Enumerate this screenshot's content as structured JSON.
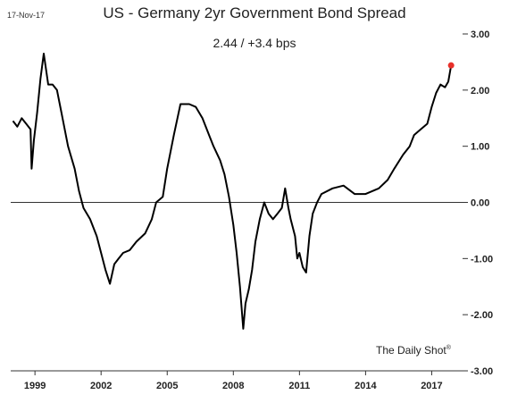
{
  "header": {
    "date": "17-Nov-17",
    "title": "US - Germany 2yr Government Bond Spread",
    "subtitle": "2.44  /  +3.4 bps"
  },
  "watermark": {
    "text": "The Daily Shot",
    "mark": "®"
  },
  "colors": {
    "line": "#000000",
    "marker": "#e8302a",
    "zero_line": "#333333"
  },
  "chart_data": {
    "type": "line",
    "title": "US - Germany 2yr Government Bond Spread",
    "subtitle": "2.44 / +3.4 bps",
    "x_range": [
      1997.9,
      2018.4
    ],
    "y_range": [
      -3.0,
      3.0
    ],
    "y_axis_position": "right",
    "grid": false,
    "zero_line": true,
    "x_ticks": [
      {
        "value": 1999,
        "label": "1999"
      },
      {
        "value": 2002,
        "label": "2002"
      },
      {
        "value": 2005,
        "label": "2005"
      },
      {
        "value": 2008,
        "label": "2008"
      },
      {
        "value": 2011,
        "label": "2011"
      },
      {
        "value": 2014,
        "label": "2014"
      },
      {
        "value": 2017,
        "label": "2017"
      }
    ],
    "y_ticks": [
      {
        "value": 3,
        "label": "3.00"
      },
      {
        "value": 2,
        "label": "2.00"
      },
      {
        "value": 1,
        "label": "1.00"
      },
      {
        "value": 0,
        "label": "0.00"
      },
      {
        "value": -1,
        "label": "-1.00"
      },
      {
        "value": -2,
        "label": "-2.00"
      },
      {
        "value": -3,
        "label": "-3.00"
      }
    ],
    "series": [
      {
        "values": [
          [
            1998.0,
            1.45
          ],
          [
            1998.2,
            1.35
          ],
          [
            1998.4,
            1.5
          ],
          [
            1998.6,
            1.4
          ],
          [
            1998.8,
            1.3
          ],
          [
            1998.85,
            0.6
          ],
          [
            1998.95,
            1.1
          ],
          [
            1999.1,
            1.6
          ],
          [
            1999.25,
            2.2
          ],
          [
            1999.4,
            2.65
          ],
          [
            1999.6,
            2.1
          ],
          [
            1999.8,
            2.1
          ],
          [
            2000.0,
            2.0
          ],
          [
            2000.2,
            1.6
          ],
          [
            2000.5,
            1.0
          ],
          [
            2000.8,
            0.6
          ],
          [
            2001.0,
            0.2
          ],
          [
            2001.2,
            -0.1
          ],
          [
            2001.5,
            -0.3
          ],
          [
            2001.8,
            -0.6
          ],
          [
            2002.0,
            -0.9
          ],
          [
            2002.2,
            -1.2
          ],
          [
            2002.4,
            -1.45
          ],
          [
            2002.6,
            -1.1
          ],
          [
            2002.8,
            -1.0
          ],
          [
            2003.0,
            -0.9
          ],
          [
            2003.3,
            -0.85
          ],
          [
            2003.6,
            -0.7
          ],
          [
            2004.0,
            -0.55
          ],
          [
            2004.3,
            -0.3
          ],
          [
            2004.5,
            0.0
          ],
          [
            2004.8,
            0.1
          ],
          [
            2005.0,
            0.6
          ],
          [
            2005.3,
            1.2
          ],
          [
            2005.6,
            1.75
          ],
          [
            2006.0,
            1.75
          ],
          [
            2006.3,
            1.7
          ],
          [
            2006.6,
            1.5
          ],
          [
            2006.9,
            1.2
          ],
          [
            2007.1,
            1.0
          ],
          [
            2007.4,
            0.75
          ],
          [
            2007.6,
            0.5
          ],
          [
            2007.8,
            0.1
          ],
          [
            2008.0,
            -0.4
          ],
          [
            2008.15,
            -0.9
          ],
          [
            2008.3,
            -1.5
          ],
          [
            2008.45,
            -2.25
          ],
          [
            2008.55,
            -1.8
          ],
          [
            2008.7,
            -1.55
          ],
          [
            2008.85,
            -1.2
          ],
          [
            2009.0,
            -0.7
          ],
          [
            2009.2,
            -0.3
          ],
          [
            2009.4,
            0.0
          ],
          [
            2009.6,
            -0.2
          ],
          [
            2009.8,
            -0.3
          ],
          [
            2010.0,
            -0.2
          ],
          [
            2010.2,
            -0.1
          ],
          [
            2010.35,
            0.25
          ],
          [
            2010.5,
            -0.1
          ],
          [
            2010.6,
            -0.3
          ],
          [
            2010.8,
            -0.6
          ],
          [
            2010.9,
            -1.0
          ],
          [
            2011.0,
            -0.9
          ],
          [
            2011.15,
            -1.15
          ],
          [
            2011.3,
            -1.25
          ],
          [
            2011.45,
            -0.6
          ],
          [
            2011.6,
            -0.2
          ],
          [
            2011.8,
            0.0
          ],
          [
            2012.0,
            0.15
          ],
          [
            2012.5,
            0.25
          ],
          [
            2013.0,
            0.3
          ],
          [
            2013.5,
            0.15
          ],
          [
            2014.0,
            0.15
          ],
          [
            2014.3,
            0.2
          ],
          [
            2014.6,
            0.25
          ],
          [
            2015.0,
            0.4
          ],
          [
            2015.3,
            0.6
          ],
          [
            2015.7,
            0.85
          ],
          [
            2016.0,
            1.0
          ],
          [
            2016.2,
            1.2
          ],
          [
            2016.5,
            1.3
          ],
          [
            2016.8,
            1.4
          ],
          [
            2017.0,
            1.7
          ],
          [
            2017.2,
            1.95
          ],
          [
            2017.4,
            2.1
          ],
          [
            2017.6,
            2.05
          ],
          [
            2017.75,
            2.15
          ],
          [
            2017.88,
            2.44
          ]
        ]
      }
    ],
    "last_point": {
      "x": 2017.88,
      "y": 2.44
    }
  }
}
